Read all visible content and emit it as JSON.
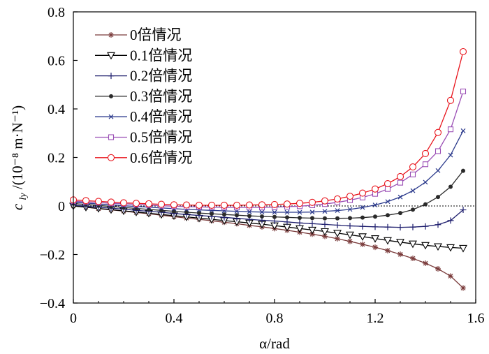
{
  "chart_data": {
    "type": "line",
    "xlabel": "α/rad",
    "ylabel_main": "c",
    "ylabel_sub": "ly",
    "ylabel_units": "/(10⁻⁸ m·N⁻¹)",
    "xlim": [
      0,
      1.6
    ],
    "ylim": [
      -0.4,
      0.8
    ],
    "xticks": [
      0,
      0.4,
      0.8,
      1.2,
      1.6
    ],
    "xtick_labels": [
      "0",
      "0.4",
      "0.8",
      "1.2",
      "1.6"
    ],
    "yticks": [
      -0.4,
      -0.2,
      0,
      0.2,
      0.4,
      0.6,
      0.8
    ],
    "ytick_labels": [
      "−0.4",
      "−0.2",
      "0",
      "0.2",
      "0.4",
      "0.6",
      "0.8"
    ],
    "zero_line": "dotted",
    "legend_position": "top-left",
    "x": [
      0,
      0.05,
      0.1,
      0.15,
      0.2,
      0.25,
      0.3,
      0.35,
      0.4,
      0.45,
      0.5,
      0.55,
      0.6,
      0.65,
      0.7,
      0.75,
      0.8,
      0.85,
      0.9,
      0.95,
      1.0,
      1.05,
      1.1,
      1.15,
      1.2,
      1.25,
      1.3,
      1.35,
      1.4,
      1.45,
      1.5,
      1.55
    ],
    "series": [
      {
        "name": "0倍情况",
        "color": "#7a3b3b",
        "marker": "star",
        "values": [
          0.0,
          -0.005,
          -0.011,
          -0.016,
          -0.021,
          -0.027,
          -0.032,
          -0.038,
          -0.044,
          -0.05,
          -0.055,
          -0.061,
          -0.067,
          -0.073,
          -0.08,
          -0.086,
          -0.093,
          -0.1,
          -0.108,
          -0.116,
          -0.125,
          -0.135,
          -0.146,
          -0.158,
          -0.17,
          -0.184,
          -0.199,
          -0.216,
          -0.236,
          -0.259,
          -0.289,
          -0.338
        ]
      },
      {
        "name": "0.1倍情况",
        "color": "#000000",
        "marker": "triangle-down",
        "values": [
          0.0,
          -0.005,
          -0.01,
          -0.015,
          -0.02,
          -0.025,
          -0.03,
          -0.035,
          -0.04,
          -0.045,
          -0.05,
          -0.055,
          -0.06,
          -0.065,
          -0.07,
          -0.075,
          -0.081,
          -0.087,
          -0.093,
          -0.099,
          -0.105,
          -0.112,
          -0.119,
          -0.126,
          -0.134,
          -0.142,
          -0.149,
          -0.156,
          -0.162,
          -0.167,
          -0.171,
          -0.174
        ]
      },
      {
        "name": "0.2倍情况",
        "color": "#1f1f6e",
        "marker": "plus",
        "values": [
          0.004,
          -0.001,
          -0.005,
          -0.009,
          -0.013,
          -0.018,
          -0.022,
          -0.026,
          -0.031,
          -0.035,
          -0.039,
          -0.043,
          -0.047,
          -0.051,
          -0.055,
          -0.059,
          -0.062,
          -0.066,
          -0.07,
          -0.073,
          -0.076,
          -0.079,
          -0.082,
          -0.084,
          -0.086,
          -0.087,
          -0.088,
          -0.087,
          -0.084,
          -0.077,
          -0.06,
          -0.016
        ]
      },
      {
        "name": "0.3倍情况",
        "color": "#2a2a2a",
        "marker": "dot",
        "values": [
          0.01,
          0.006,
          0.002,
          -0.002,
          -0.006,
          -0.01,
          -0.014,
          -0.018,
          -0.022,
          -0.026,
          -0.029,
          -0.032,
          -0.035,
          -0.038,
          -0.041,
          -0.043,
          -0.045,
          -0.047,
          -0.049,
          -0.05,
          -0.051,
          -0.051,
          -0.05,
          -0.048,
          -0.044,
          -0.038,
          -0.029,
          -0.015,
          0.007,
          0.037,
          0.079,
          0.145
        ]
      },
      {
        "name": "0.4倍情况",
        "color": "#2b3a8c",
        "marker": "x",
        "values": [
          0.015,
          0.012,
          0.008,
          0.005,
          0.001,
          -0.002,
          -0.005,
          -0.008,
          -0.011,
          -0.014,
          -0.016,
          -0.018,
          -0.02,
          -0.022,
          -0.024,
          -0.025,
          -0.026,
          -0.026,
          -0.026,
          -0.025,
          -0.022,
          -0.019,
          -0.014,
          -0.006,
          0.004,
          0.018,
          0.037,
          0.063,
          0.098,
          0.146,
          0.21,
          0.31
        ]
      },
      {
        "name": "0.5倍情况",
        "color": "#9b4fb5",
        "marker": "square",
        "values": [
          0.02,
          0.017,
          0.014,
          0.011,
          0.009,
          0.006,
          0.004,
          0.001,
          -0.001,
          -0.003,
          -0.004,
          -0.005,
          -0.006,
          -0.006,
          -0.006,
          -0.006,
          -0.005,
          -0.003,
          -0.001,
          0.003,
          0.008,
          0.015,
          0.024,
          0.035,
          0.05,
          0.07,
          0.096,
          0.13,
          0.172,
          0.226,
          0.316,
          0.472
        ]
      },
      {
        "name": "0.6倍情况",
        "color": "#e8141c",
        "marker": "circle",
        "values": [
          0.025,
          0.022,
          0.019,
          0.016,
          0.013,
          0.011,
          0.009,
          0.007,
          0.005,
          0.004,
          0.003,
          0.003,
          0.003,
          0.003,
          0.004,
          0.005,
          0.006,
          0.008,
          0.011,
          0.015,
          0.021,
          0.029,
          0.04,
          0.053,
          0.07,
          0.092,
          0.121,
          0.161,
          0.216,
          0.303,
          0.435,
          0.636
        ]
      }
    ]
  }
}
